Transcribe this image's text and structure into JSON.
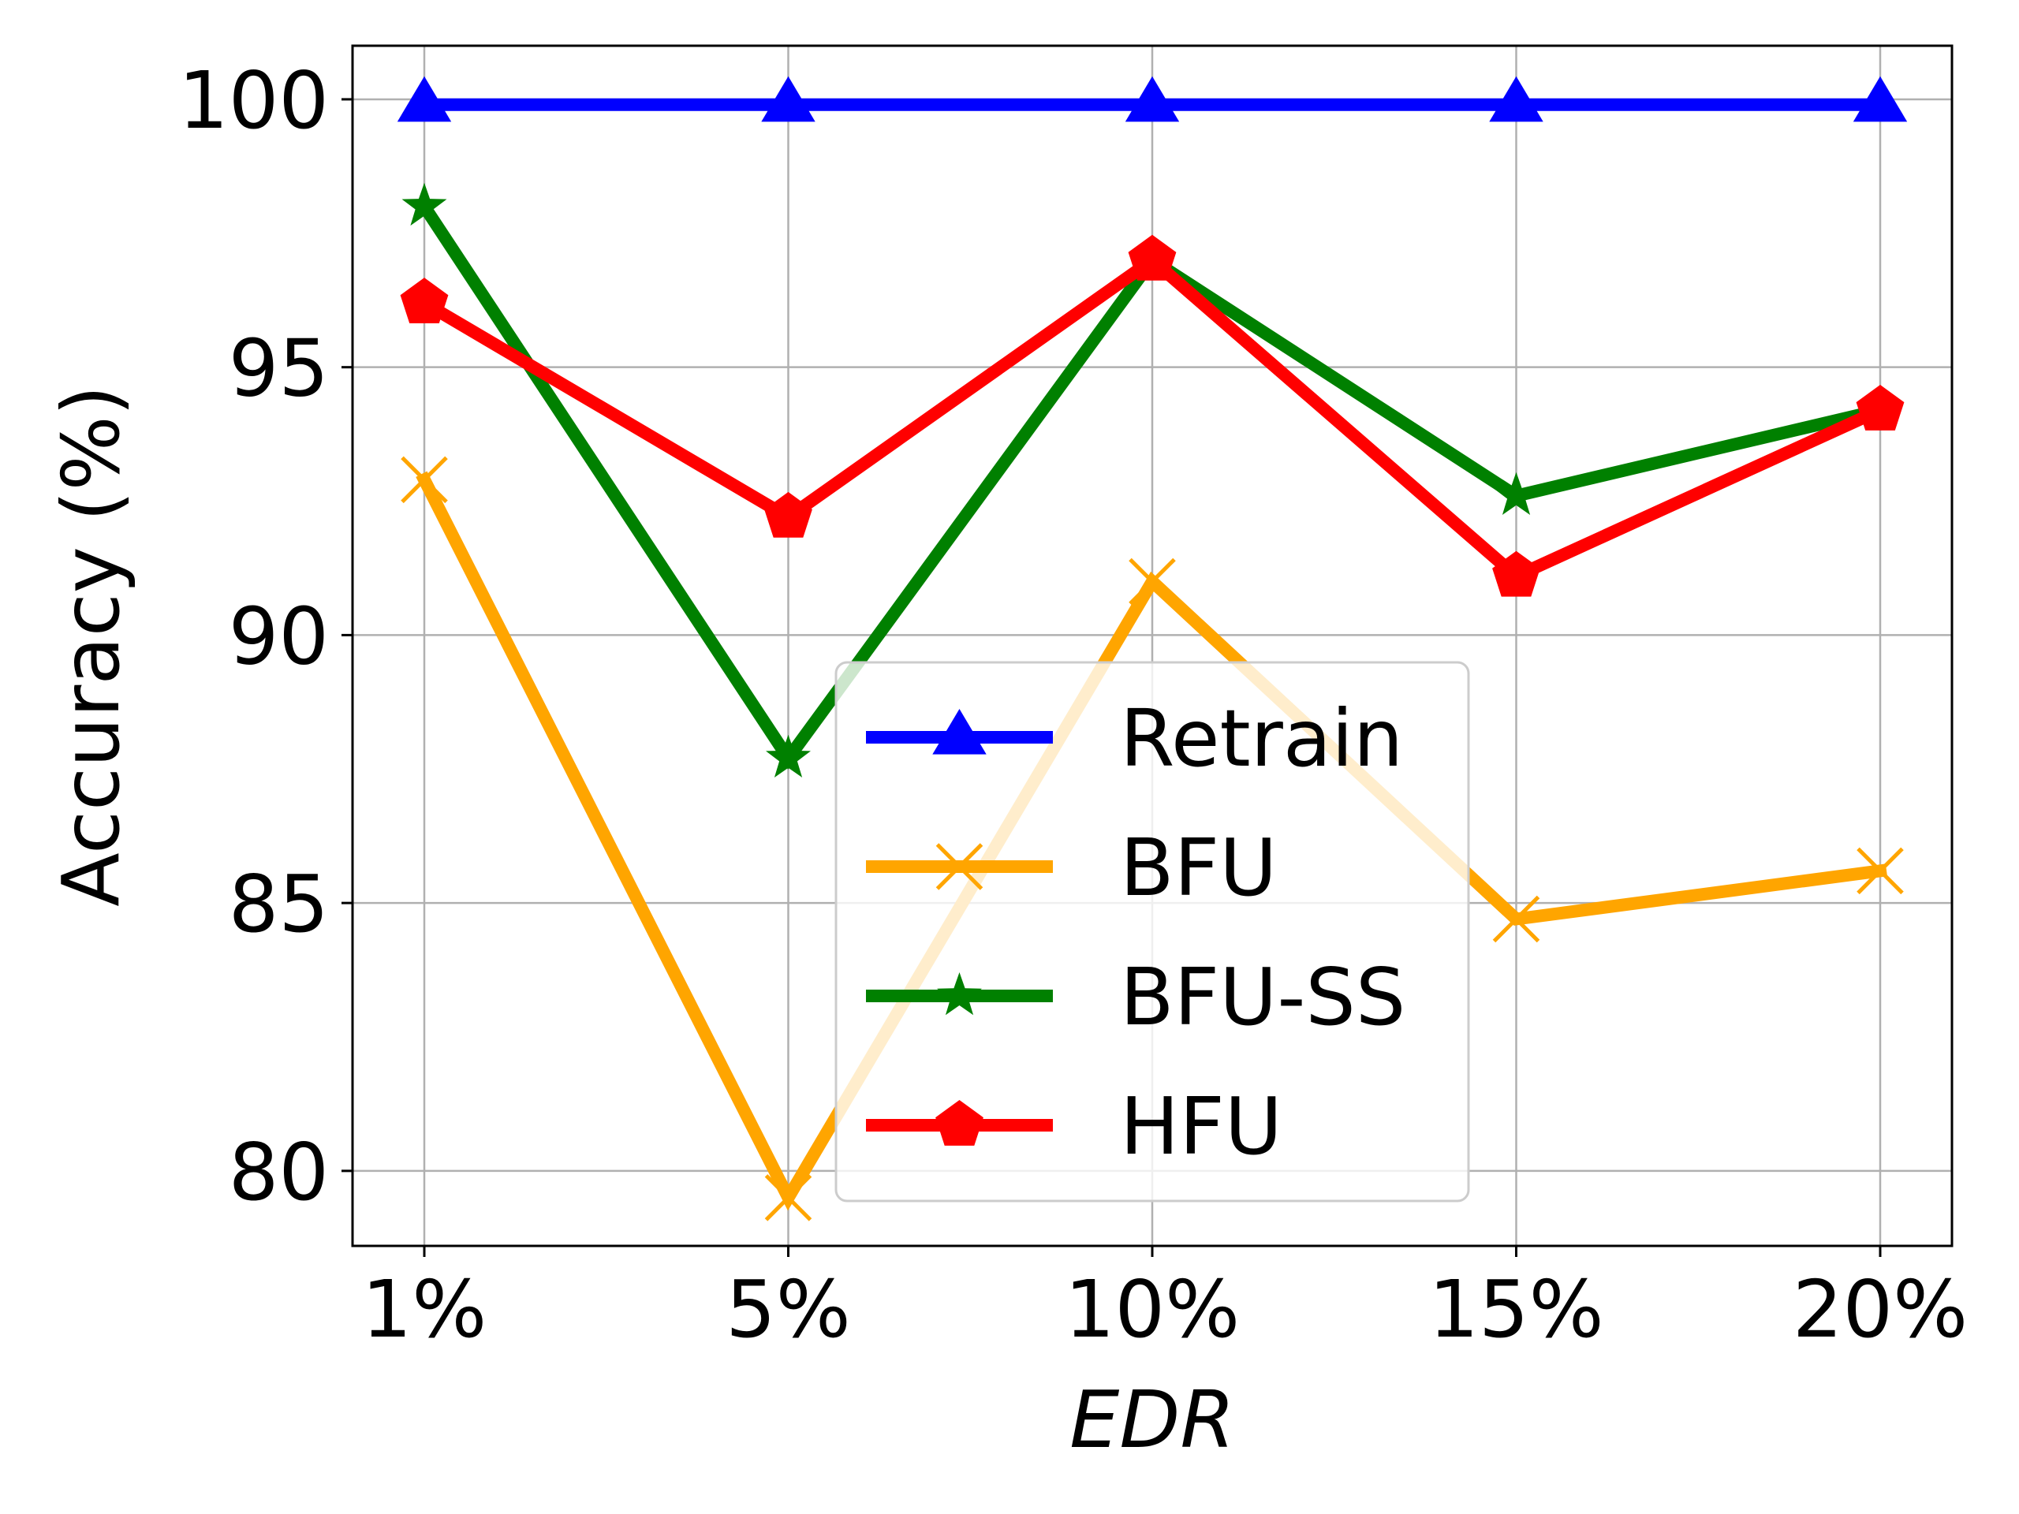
{
  "chart_data": {
    "type": "line",
    "categories": [
      "1%",
      "5%",
      "10%",
      "15%",
      "20%"
    ],
    "xlabel": "EDR",
    "ylabel": "Accuracy (%)",
    "ylim": [
      78.6,
      101.0
    ],
    "yticks": [
      80,
      85,
      90,
      95,
      100
    ],
    "grid": true,
    "legend_position": "lower-center",
    "series": [
      {
        "name": "Retrain",
        "color": "#0000ff",
        "marker": "triangle-up",
        "values": [
          99.9,
          99.9,
          99.9,
          99.9,
          99.9
        ]
      },
      {
        "name": "BFU",
        "color": "#ffa500",
        "marker": "x",
        "values": [
          92.9,
          79.5,
          91.0,
          84.7,
          85.6
        ]
      },
      {
        "name": "BFU-SS",
        "color": "#008000",
        "marker": "star",
        "values": [
          98.0,
          87.7,
          97.0,
          92.6,
          94.2
        ]
      },
      {
        "name": "HFU",
        "color": "#ff0000",
        "marker": "pentagon",
        "values": [
          96.2,
          92.2,
          97.0,
          91.1,
          94.2
        ]
      }
    ]
  }
}
